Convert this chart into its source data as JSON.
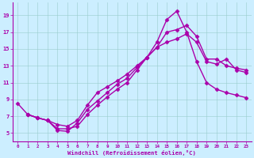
{
  "xlabel": "Windchill (Refroidissement éolien,°C)",
  "bg_color": "#cceeff",
  "line_color": "#aa00aa",
  "marker": "D",
  "markersize": 2.5,
  "linewidth": 1.0,
  "xlim": [
    -0.5,
    23.5
  ],
  "ylim": [
    4,
    20.5
  ],
  "xticks": [
    0,
    1,
    2,
    3,
    4,
    5,
    6,
    7,
    8,
    9,
    10,
    11,
    12,
    13,
    14,
    15,
    16,
    17,
    18,
    19,
    20,
    21,
    22,
    23
  ],
  "yticks": [
    5,
    7,
    9,
    11,
    13,
    15,
    17,
    19
  ],
  "grid_color": "#99cccc",
  "line1_x": [
    0,
    1,
    2,
    3,
    4,
    5,
    6,
    7,
    8,
    9,
    10,
    11,
    12,
    13,
    14,
    15,
    16,
    17,
    18,
    19,
    20,
    21,
    22,
    23
  ],
  "line1_y": [
    8.5,
    7.2,
    6.8,
    6.5,
    6.0,
    5.8,
    6.5,
    8.3,
    9.8,
    10.5,
    11.2,
    12.0,
    13.0,
    14.0,
    15.2,
    17.0,
    17.3,
    17.8,
    16.5,
    13.8,
    13.8,
    13.0,
    12.7,
    12.5
  ],
  "line2_x": [
    1,
    2,
    3,
    4,
    5,
    6,
    7,
    8,
    9,
    10,
    11,
    12,
    13,
    14,
    15,
    16,
    17,
    18,
    19,
    20,
    21,
    22,
    23
  ],
  "line2_y": [
    7.2,
    6.8,
    6.5,
    5.5,
    5.5,
    5.8,
    7.2,
    8.3,
    9.3,
    10.2,
    11.0,
    12.5,
    14.0,
    15.8,
    18.5,
    19.5,
    17.0,
    13.5,
    11.0,
    10.2,
    9.8,
    9.5,
    9.2
  ],
  "line3_x": [
    1,
    2,
    3,
    4,
    5,
    6,
    7,
    8,
    9,
    10,
    11,
    12,
    13,
    14,
    15,
    16,
    17,
    18,
    19,
    20,
    21,
    22,
    23
  ],
  "line3_y": [
    7.2,
    6.8,
    6.5,
    5.3,
    5.2,
    6.2,
    7.8,
    8.8,
    9.8,
    10.8,
    11.5,
    12.8,
    14.0,
    15.2,
    15.8,
    16.2,
    16.8,
    15.8,
    13.5,
    13.2,
    13.8,
    12.5,
    12.2
  ]
}
